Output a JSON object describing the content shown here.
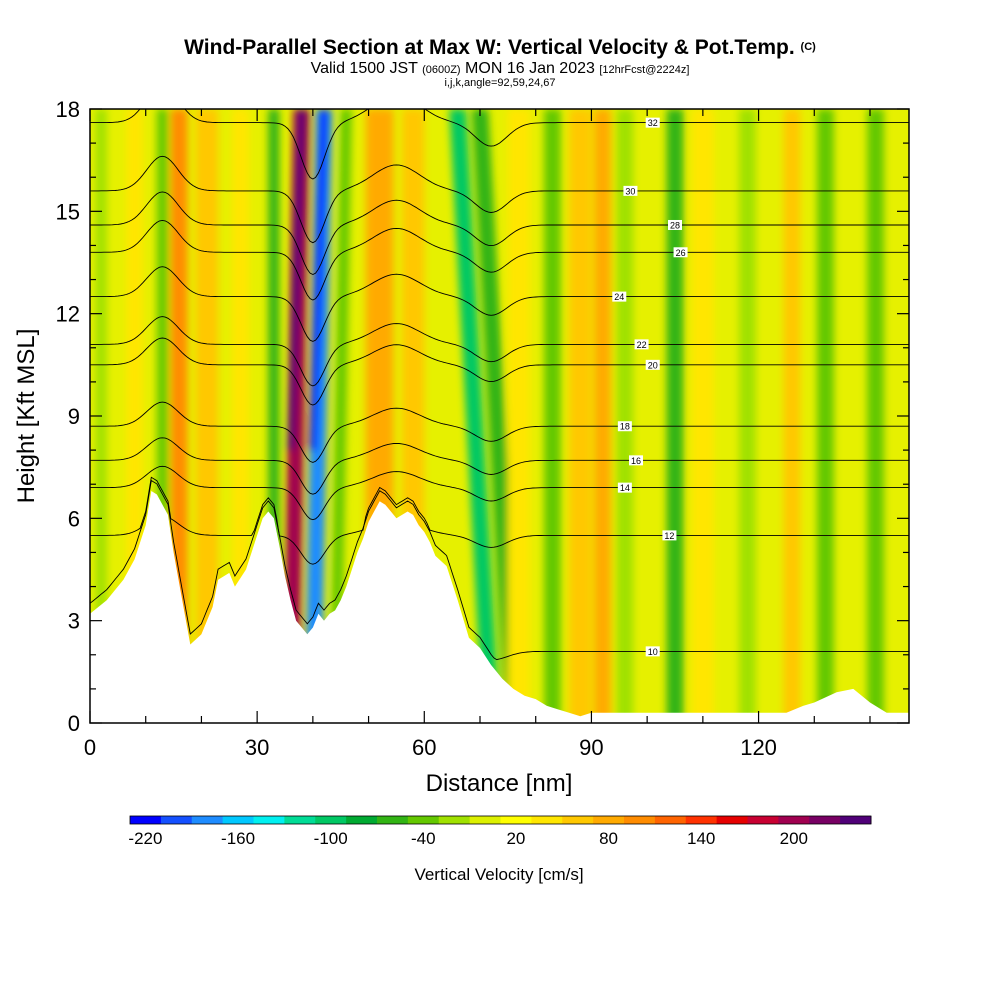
{
  "titles": {
    "main": "Wind-Parallel Section at Max W: Vertical Velocity & Pot.Temp.",
    "copyright": "(C)",
    "valid_prefix": "Valid 1500 JST",
    "valid_utc": "(0600Z)",
    "valid_date": "MON 16 Jan 2023",
    "forecast": "[12hrFcst@2224z]",
    "section_params": "i,j,k,angle=92,59,24,67"
  },
  "chart_data": {
    "type": "heatmap",
    "xlabel": "Distance [nm]",
    "ylabel": "Height [Kft MSL]",
    "xlim": [
      0,
      147
    ],
    "ylim": [
      0,
      18
    ],
    "x_ticks": [
      0,
      30,
      60,
      90,
      120
    ],
    "y_ticks": [
      0,
      3,
      6,
      9,
      12,
      15,
      18
    ],
    "colorbar": {
      "label": "Vertical Velocity [cm/s]",
      "tick_labels": [
        "-220",
        "-160",
        "-100",
        "-40",
        "20",
        "80",
        "140",
        "200"
      ],
      "tick_values": [
        -220,
        -160,
        -100,
        -40,
        20,
        80,
        140,
        200
      ],
      "min": -230,
      "max": 250,
      "colors": [
        "#0000ff",
        "#1450ff",
        "#1e8cff",
        "#00c8ff",
        "#00f0f0",
        "#00dc96",
        "#00c864",
        "#00aa32",
        "#32b414",
        "#64c800",
        "#a0e100",
        "#dcf000",
        "#ffff00",
        "#ffe600",
        "#ffc800",
        "#ffaa00",
        "#ff8c00",
        "#ff6400",
        "#ff3200",
        "#e60000",
        "#c80032",
        "#a00050",
        "#780064",
        "#500078"
      ]
    },
    "terrain_profile": {
      "x": [
        0,
        3,
        6,
        8,
        10,
        11,
        12,
        14,
        15,
        17,
        18,
        20,
        22,
        23,
        25,
        26,
        28,
        30,
        31,
        32,
        33,
        34,
        35,
        36,
        37,
        38,
        39,
        40,
        41,
        42,
        43,
        44,
        45,
        46,
        47,
        48,
        49,
        50,
        51,
        52,
        53,
        54,
        55,
        56,
        57,
        58,
        59,
        60,
        61,
        62,
        64,
        66,
        68,
        70,
        72,
        74,
        76,
        78,
        80,
        82,
        84,
        86,
        88,
        90,
        95,
        100,
        105,
        110,
        115,
        120,
        125,
        128,
        130,
        134,
        137,
        140,
        143,
        145,
        147
      ],
      "y": [
        3.2,
        3.6,
        4.2,
        4.8,
        5.8,
        6.8,
        6.7,
        6.1,
        5.0,
        3.2,
        2.3,
        2.6,
        3.4,
        4.2,
        4.4,
        4.0,
        4.5,
        5.5,
        6.0,
        6.2,
        6.0,
        5.2,
        4.3,
        3.6,
        3.0,
        2.8,
        2.6,
        2.8,
        3.2,
        3.0,
        3.2,
        3.3,
        3.6,
        4.0,
        4.5,
        5.0,
        5.4,
        5.9,
        6.2,
        6.5,
        6.4,
        6.2,
        6.0,
        6.1,
        6.2,
        6.1,
        5.8,
        5.6,
        5.3,
        4.9,
        4.6,
        3.6,
        2.5,
        2.2,
        1.7,
        1.3,
        1.0,
        0.8,
        0.7,
        0.5,
        0.4,
        0.3,
        0.2,
        0.3,
        0.3,
        0.3,
        0.3,
        0.3,
        0.3,
        0.3,
        0.3,
        0.5,
        0.6,
        0.9,
        1.0,
        0.6,
        0.3,
        0.3,
        0.3
      ]
    },
    "w_field_bands": [
      {
        "x": 2,
        "width": 2,
        "value": -20
      },
      {
        "x": 8,
        "width": 3,
        "value": 40
      },
      {
        "x": 13,
        "width": 2,
        "value": -50
      },
      {
        "x": 16,
        "width": 3,
        "value": 90
      },
      {
        "x": 21,
        "width": 4,
        "value": 60
      },
      {
        "x": 27,
        "width": 3,
        "value": 35
      },
      {
        "x": 33,
        "width": 2,
        "value": -60
      },
      {
        "x": 38,
        "x_bottom": 36,
        "width": 3,
        "value": 200
      },
      {
        "x": 42,
        "x_bottom": 40,
        "width": 3,
        "value": -180
      },
      {
        "x": 46,
        "x_bottom": 44,
        "width": 2,
        "value": -40
      },
      {
        "x": 52,
        "width": 5,
        "value": 70
      },
      {
        "x": 58,
        "width": 4,
        "value": 55
      },
      {
        "x": 66,
        "x_bottom": 72,
        "width": 3,
        "value": -110
      },
      {
        "x": 70,
        "x_bottom": 76,
        "width": 3,
        "value": -60
      },
      {
        "x": 77,
        "width": 4,
        "value": 45
      },
      {
        "x": 83,
        "width": 3,
        "value": -45
      },
      {
        "x": 88,
        "width": 4,
        "value": 60
      },
      {
        "x": 92,
        "width": 3,
        "value": 70
      },
      {
        "x": 96,
        "width": 3,
        "value": -30
      },
      {
        "x": 105,
        "width": 3,
        "value": -55
      },
      {
        "x": 110,
        "width": 4,
        "value": 40
      },
      {
        "x": 118,
        "width": 3,
        "value": -30
      },
      {
        "x": 126,
        "width": 3,
        "value": 50
      },
      {
        "x": 132,
        "width": 3,
        "value": -40
      },
      {
        "x": 141,
        "width": 3,
        "value": -35
      }
    ],
    "theta_contours": [
      {
        "label": "10",
        "base": 2.1,
        "label_x": 101
      },
      {
        "label": "12",
        "base": 5.5,
        "label_x": 104
      },
      {
        "label": "14",
        "base": 6.9,
        "label_x": 96
      },
      {
        "label": "16",
        "base": 7.7,
        "label_x": 98
      },
      {
        "label": "18",
        "base": 8.7,
        "label_x": 96
      },
      {
        "label": "20",
        "base": 10.5,
        "label_x": 101
      },
      {
        "label": "22",
        "base": 11.1,
        "label_x": 99
      },
      {
        "label": "24",
        "base": 12.5,
        "label_x": 95
      },
      {
        "label": "26",
        "base": 13.8,
        "label_x": 106
      },
      {
        "label": "28",
        "base": 14.6,
        "label_x": 105
      },
      {
        "label": "30",
        "base": 15.6,
        "label_x": 97
      },
      {
        "label": "32",
        "base": 17.6,
        "label_x": 101
      }
    ]
  }
}
